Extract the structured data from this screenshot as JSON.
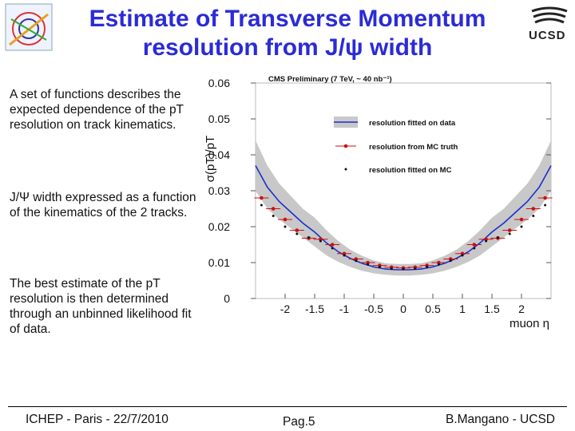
{
  "slide": {
    "title_line1": "Estimate of Transverse Momentum",
    "title_line2": "resolution from J/ψ width",
    "logo_text": "UCSD",
    "title_color": "#2b2bd6"
  },
  "bullets": [
    "A set of functions describes the expected dependence of the pT resolution on track kinematics.",
    "J/Ψ width expressed as a function of the kinematics of the 2 tracks.",
    "The best estimate of the pT resolution is then determined through an unbinned likelihood fit of data."
  ],
  "footer": {
    "left": "ICHEP - Paris - 22/7/2010",
    "center": "Pag.5",
    "right": "B.Mangano - UCSD"
  },
  "chart_data": {
    "type": "line",
    "title": "CMS Preliminary (7 TeV, ~ 40 nb⁻¹)",
    "xlabel": "muon η",
    "ylabel": "σ(pT)/pT",
    "xlim": [
      -2.5,
      2.5
    ],
    "ylim": [
      0,
      0.06
    ],
    "x_ticks": [
      "-2",
      "-1.5",
      "-1",
      "-0.5",
      "0",
      "0.5",
      "1",
      "1.5",
      "2"
    ],
    "y_ticks": [
      "0",
      "0.01",
      "0.02",
      "0.03",
      "0.04",
      "0.05",
      "0.06"
    ],
    "legend": [
      "resolution fitted on data",
      "resolution from MC truth",
      "resolution fitted on MC"
    ],
    "legend_position": "top-right",
    "colors": {
      "data": "#1a2fd0",
      "band": "#c8c8c8",
      "mc_truth": "#cc1111",
      "mc_fit": "#111111"
    },
    "series": [
      {
        "name": "resolution fitted on data",
        "x": [
          -2.5,
          -2.3,
          -2.1,
          -1.9,
          -1.7,
          -1.5,
          -1.3,
          -1.1,
          -0.9,
          -0.7,
          -0.5,
          -0.3,
          -0.1,
          0.1,
          0.3,
          0.5,
          0.7,
          0.9,
          1.1,
          1.3,
          1.5,
          1.7,
          1.9,
          2.1,
          2.3,
          2.5
        ],
        "values": [
          0.037,
          0.031,
          0.027,
          0.024,
          0.021,
          0.0185,
          0.0155,
          0.013,
          0.0112,
          0.0098,
          0.0088,
          0.0082,
          0.008,
          0.008,
          0.0082,
          0.0088,
          0.0098,
          0.0112,
          0.013,
          0.0155,
          0.0185,
          0.021,
          0.024,
          0.027,
          0.031,
          0.037
        ],
        "band_lo": [
          0.03,
          0.025,
          0.022,
          0.0195,
          0.017,
          0.0145,
          0.012,
          0.0102,
          0.0088,
          0.0077,
          0.007,
          0.0066,
          0.0064,
          0.0064,
          0.0066,
          0.007,
          0.0077,
          0.0088,
          0.0102,
          0.012,
          0.0145,
          0.017,
          0.0195,
          0.022,
          0.025,
          0.03
        ],
        "band_hi": [
          0.044,
          0.037,
          0.032,
          0.0285,
          0.025,
          0.0225,
          0.019,
          0.016,
          0.0136,
          0.0119,
          0.0106,
          0.0098,
          0.0096,
          0.0096,
          0.0098,
          0.0106,
          0.0119,
          0.0136,
          0.016,
          0.019,
          0.0225,
          0.025,
          0.0285,
          0.032,
          0.037,
          0.044
        ]
      },
      {
        "name": "resolution from MC truth",
        "x": [
          -2.4,
          -2.2,
          -2.0,
          -1.8,
          -1.6,
          -1.4,
          -1.2,
          -1.0,
          -0.8,
          -0.6,
          -0.4,
          -0.2,
          0.0,
          0.2,
          0.4,
          0.6,
          0.8,
          1.0,
          1.2,
          1.4,
          1.6,
          1.8,
          2.0,
          2.2,
          2.4
        ],
        "values": [
          0.028,
          0.025,
          0.022,
          0.019,
          0.0168,
          0.0165,
          0.015,
          0.0125,
          0.011,
          0.01,
          0.0092,
          0.0087,
          0.0085,
          0.0087,
          0.0092,
          0.01,
          0.011,
          0.0125,
          0.015,
          0.0165,
          0.0168,
          0.019,
          0.022,
          0.025,
          0.028
        ]
      },
      {
        "name": "resolution fitted on MC",
        "x": [
          -2.4,
          -2.2,
          -2.0,
          -1.8,
          -1.6,
          -1.4,
          -1.2,
          -1.0,
          -0.8,
          -0.6,
          -0.4,
          -0.2,
          0.0,
          0.2,
          0.4,
          0.6,
          0.8,
          1.0,
          1.2,
          1.4,
          1.6,
          1.8,
          2.0,
          2.2,
          2.4
        ],
        "values": [
          0.026,
          0.023,
          0.02,
          0.018,
          0.017,
          0.016,
          0.014,
          0.012,
          0.0105,
          0.0095,
          0.0088,
          0.0083,
          0.0082,
          0.0083,
          0.0088,
          0.0095,
          0.0105,
          0.012,
          0.014,
          0.016,
          0.017,
          0.018,
          0.02,
          0.023,
          0.026
        ]
      }
    ]
  }
}
